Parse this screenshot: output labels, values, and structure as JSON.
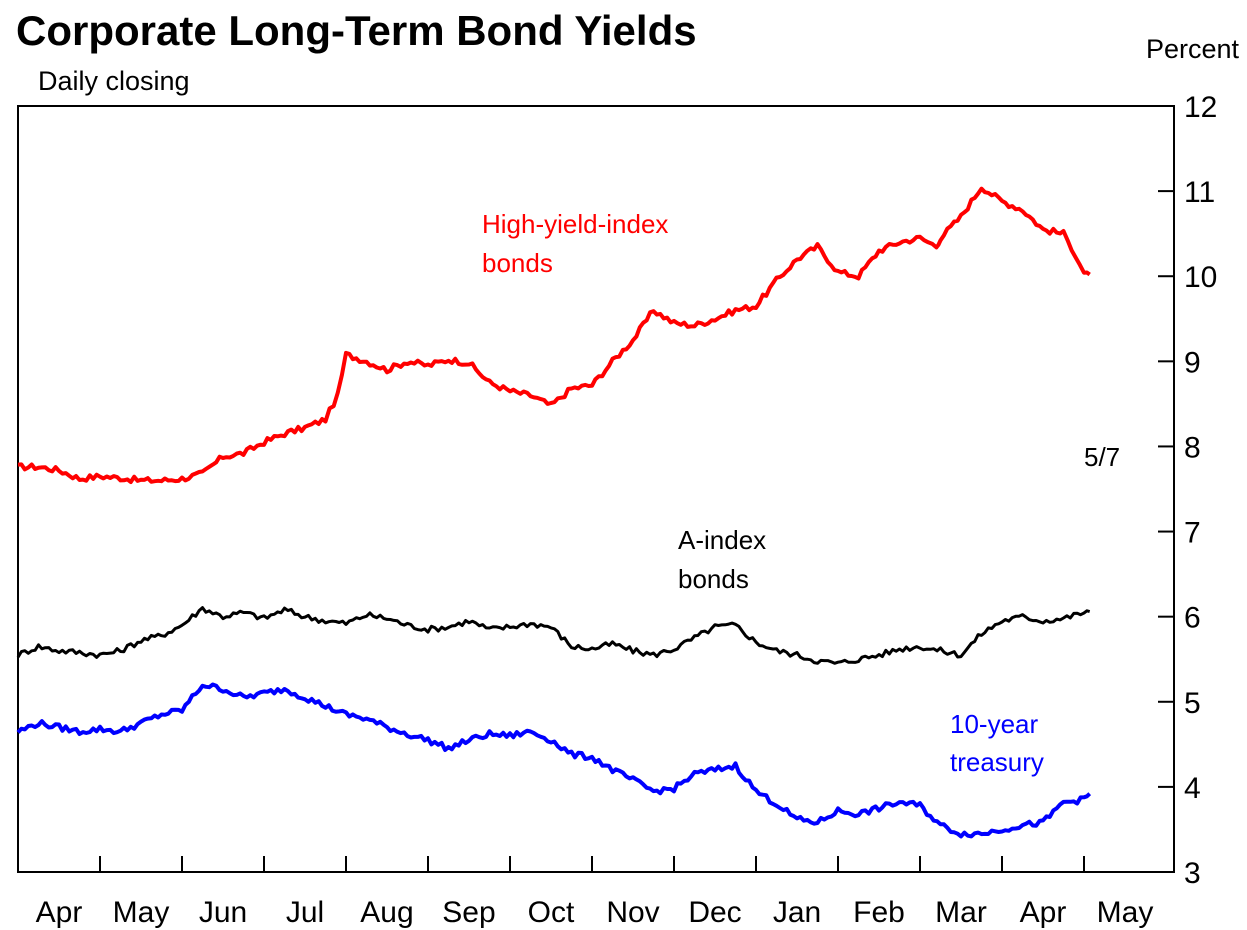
{
  "chart_data": {
    "type": "line",
    "title": "Corporate Long-Term Bond Yields",
    "subtitle": "Daily closing",
    "ylabel": "Percent",
    "ylim": [
      3,
      12
    ],
    "y_ticks": [
      "3",
      "4",
      "5",
      "6",
      "7",
      "8",
      "9",
      "10",
      "11",
      "12"
    ],
    "categories": [
      "Apr",
      "May",
      "Jun",
      "Jul",
      "Aug",
      "Sep",
      "Oct",
      "Nov",
      "Dec",
      "Jan",
      "Feb",
      "Mar",
      "Apr",
      "May"
    ],
    "end_date_label": "5/7",
    "annotations": {
      "high_yield": [
        "High-yield-index",
        "bonds"
      ],
      "a_index": [
        "A-index",
        "bonds"
      ],
      "treasury": [
        "10-year",
        "treasury"
      ]
    },
    "colors": {
      "high_yield": "#ff0000",
      "a_index": "#000000",
      "treasury": "#0000ff"
    },
    "series": [
      {
        "key": "high_yield",
        "x": [
          0,
          0.25,
          0.5,
          0.75,
          1,
          1.25,
          1.5,
          1.75,
          2,
          2.25,
          2.5,
          2.75,
          3,
          3.25,
          3.5,
          3.75,
          3.9,
          4,
          4.25,
          4.5,
          4.75,
          5,
          5.25,
          5.5,
          5.75,
          6,
          6.25,
          6.5,
          6.75,
          7,
          7.25,
          7.5,
          7.75,
          8,
          8.25,
          8.5,
          8.75,
          9,
          9.25,
          9.5,
          9.75,
          10,
          10.25,
          10.5,
          10.75,
          11,
          11.2,
          11.25,
          11.5,
          11.75,
          12,
          12.25,
          12.5,
          12.75,
          12.9,
          13,
          13.07
        ],
        "y": [
          7.76,
          7.76,
          7.72,
          7.62,
          7.65,
          7.63,
          7.6,
          7.6,
          7.62,
          7.68,
          7.88,
          7.92,
          8.05,
          8.15,
          8.22,
          8.32,
          8.6,
          9.08,
          9.0,
          8.9,
          9.0,
          8.95,
          9.02,
          8.98,
          8.75,
          8.65,
          8.6,
          8.48,
          8.68,
          8.72,
          9.0,
          9.25,
          9.6,
          9.45,
          9.42,
          9.5,
          9.6,
          9.65,
          9.95,
          10.2,
          10.35,
          10.05,
          10.0,
          10.3,
          10.4,
          10.45,
          10.35,
          10.45,
          10.7,
          11.05,
          10.88,
          10.78,
          10.55,
          10.5,
          10.25,
          10.05,
          10.02
        ]
      },
      {
        "key": "a_index",
        "x": [
          0,
          0.25,
          0.5,
          0.75,
          1,
          1.25,
          1.5,
          1.75,
          2,
          2.25,
          2.5,
          2.75,
          3,
          3.25,
          3.5,
          3.75,
          4,
          4.25,
          4.5,
          4.75,
          5,
          5.25,
          5.5,
          5.75,
          6,
          6.25,
          6.5,
          6.75,
          7,
          7.25,
          7.5,
          7.75,
          8,
          8.25,
          8.5,
          8.75,
          9,
          9.25,
          9.5,
          9.75,
          10,
          10.25,
          10.5,
          10.75,
          11,
          11.25,
          11.5,
          11.75,
          12,
          12.25,
          12.5,
          12.75,
          13,
          13.07
        ],
        "y": [
          5.55,
          5.65,
          5.6,
          5.58,
          5.55,
          5.6,
          5.72,
          5.78,
          5.9,
          6.1,
          6.0,
          6.05,
          5.98,
          6.08,
          6.0,
          5.95,
          5.92,
          6.02,
          5.98,
          5.9,
          5.85,
          5.88,
          5.95,
          5.85,
          5.88,
          5.92,
          5.88,
          5.65,
          5.62,
          5.68,
          5.6,
          5.55,
          5.62,
          5.75,
          5.88,
          5.9,
          5.7,
          5.6,
          5.55,
          5.48,
          5.45,
          5.5,
          5.55,
          5.62,
          5.65,
          5.6,
          5.55,
          5.8,
          5.95,
          6.0,
          5.95,
          5.98,
          6.05,
          6.06
        ]
      },
      {
        "key": "treasury",
        "x": [
          0,
          0.25,
          0.5,
          0.75,
          1,
          1.25,
          1.5,
          1.75,
          2,
          2.25,
          2.5,
          2.75,
          3,
          3.25,
          3.5,
          3.75,
          4,
          4.25,
          4.5,
          4.75,
          5,
          5.25,
          5.5,
          5.75,
          6,
          6.25,
          6.5,
          6.75,
          7,
          7.25,
          7.5,
          7.75,
          8,
          8.25,
          8.5,
          8.75,
          9,
          9.25,
          9.5,
          9.75,
          10,
          10.25,
          10.5,
          10.75,
          11,
          11.25,
          11.5,
          11.75,
          12,
          12.25,
          12.5,
          12.75,
          13,
          13.07
        ],
        "y": [
          4.65,
          4.75,
          4.7,
          4.65,
          4.68,
          4.65,
          4.75,
          4.85,
          4.9,
          5.2,
          5.15,
          5.05,
          5.1,
          5.15,
          5.05,
          4.95,
          4.85,
          4.8,
          4.7,
          4.62,
          4.55,
          4.45,
          4.55,
          4.62,
          4.6,
          4.65,
          4.55,
          4.38,
          4.35,
          4.2,
          4.08,
          3.95,
          3.98,
          4.15,
          4.2,
          4.25,
          3.95,
          3.8,
          3.62,
          3.58,
          3.72,
          3.68,
          3.75,
          3.82,
          3.78,
          3.55,
          3.45,
          3.45,
          3.5,
          3.55,
          3.58,
          3.82,
          3.85,
          3.92
        ]
      }
    ]
  }
}
